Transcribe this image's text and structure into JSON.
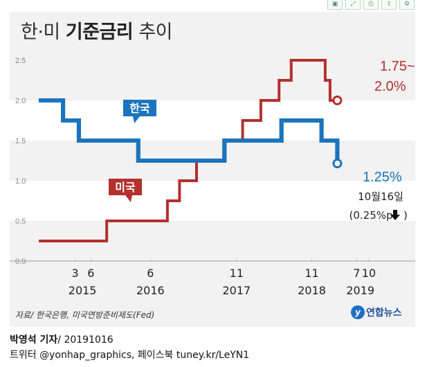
{
  "toolbar": {
    "buttons": [
      {
        "icon": "save-icon",
        "glyph": "▣"
      },
      {
        "icon": "expand-icon",
        "glyph": "⤢"
      },
      {
        "icon": "print-icon",
        "glyph": "⎙"
      },
      {
        "icon": "share-icon",
        "glyph": "⇪"
      },
      {
        "icon": "settings-icon",
        "glyph": "⚙"
      }
    ]
  },
  "title": {
    "part1": "한·미 ",
    "bold": "기준금리",
    "part2": " 추이"
  },
  "chart_data": {
    "type": "line",
    "step": true,
    "ylim": [
      0,
      2.5
    ],
    "yticks": [
      "0.0",
      "0.5",
      "1.0",
      "1.5",
      "2.0",
      "2.5"
    ],
    "x_tick_labels": [
      {
        "month": "3",
        "year": "2015",
        "t": 3.0
      },
      {
        "month": "6",
        "year": "",
        "t": 4.3
      },
      {
        "month": "6",
        "year": "2016",
        "t": 9.2
      },
      {
        "month": "11",
        "year": "2017",
        "t": 16.3
      },
      {
        "month": "11",
        "year": "2018",
        "t": 22.5
      },
      {
        "month": "7",
        "year": "2019",
        "t": 26.2
      },
      {
        "month": "10",
        "year": "",
        "t": 27.2
      }
    ],
    "year_labels": [
      {
        "label": "2015",
        "t": 3.6
      },
      {
        "label": "2016",
        "t": 9.2
      },
      {
        "label": "2017",
        "t": 16.3
      },
      {
        "label": "2018",
        "t": 22.5
      },
      {
        "label": "2019",
        "t": 26.5
      }
    ],
    "series": [
      {
        "name": "한국",
        "color": "#1b74bd",
        "points": [
          [
            0,
            2.0
          ],
          [
            2.0,
            2.0
          ],
          [
            2.0,
            1.75
          ],
          [
            3.3,
            1.75
          ],
          [
            3.3,
            1.5
          ],
          [
            8.2,
            1.5
          ],
          [
            8.2,
            1.25
          ],
          [
            15.3,
            1.25
          ],
          [
            15.3,
            1.5
          ],
          [
            20.0,
            1.5
          ],
          [
            20.0,
            1.75
          ],
          [
            23.3,
            1.75
          ],
          [
            23.3,
            1.5
          ],
          [
            24.6,
            1.5
          ],
          [
            24.6,
            1.25
          ]
        ],
        "end_label": "1.25%",
        "end_value": 1.25
      },
      {
        "name": "미국",
        "color": "#b3302d",
        "points": [
          [
            0,
            0.25
          ],
          [
            5.6,
            0.25
          ],
          [
            5.6,
            0.5
          ],
          [
            10.6,
            0.5
          ],
          [
            10.6,
            0.75
          ],
          [
            11.6,
            0.75
          ],
          [
            11.6,
            1.0
          ],
          [
            13.0,
            1.0
          ],
          [
            13.0,
            1.25
          ],
          [
            15.3,
            1.25
          ],
          [
            15.3,
            1.5
          ],
          [
            16.8,
            1.5
          ],
          [
            16.8,
            1.75
          ],
          [
            18.3,
            1.75
          ],
          [
            18.3,
            2.0
          ],
          [
            19.8,
            2.0
          ],
          [
            19.8,
            2.25
          ],
          [
            20.8,
            2.25
          ],
          [
            20.8,
            2.5
          ],
          [
            23.6,
            2.5
          ],
          [
            23.6,
            2.25
          ],
          [
            24.0,
            2.25
          ],
          [
            24.0,
            2.0
          ],
          [
            24.6,
            2.0
          ]
        ],
        "end_label_line1": "1.75~",
        "end_label_line2": "2.0%",
        "end_value": 2.0
      }
    ],
    "annotation": {
      "line1": "10월16일",
      "line2": "(0.25%p",
      "arrow": "🡇",
      "line2_end": ")"
    }
  },
  "source": "자료/ 한국은행, 미국연방준비제도(Fed)",
  "logo": {
    "mark": "y",
    "name": "연합뉴스"
  },
  "byline": {
    "reporter": "박영석 기자",
    "sep": "/ ",
    "date": "20191016"
  },
  "social": "트위터 @yonhap_graphics, 페이스북 tuney.kr/LeYN1"
}
